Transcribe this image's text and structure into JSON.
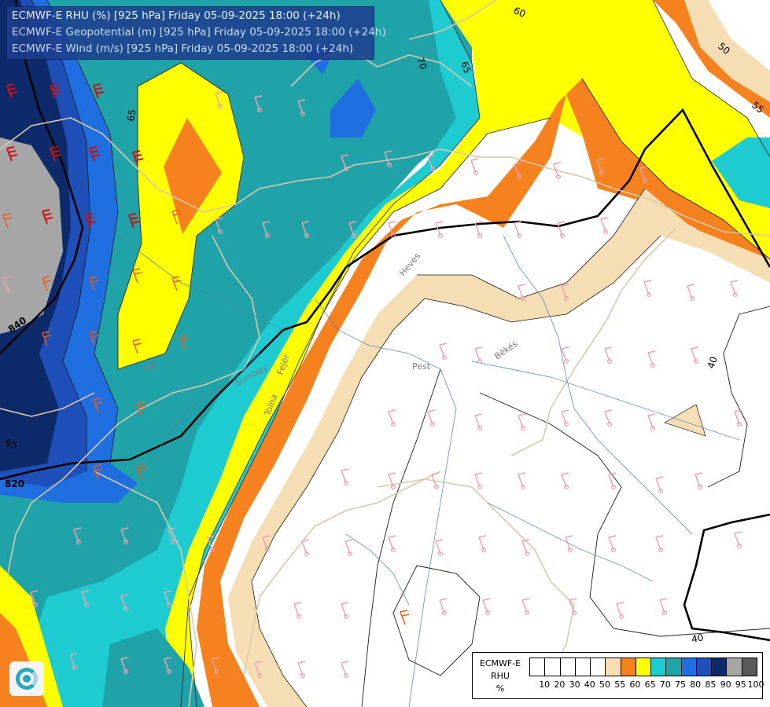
{
  "header": {
    "line1": "ECMWF-E RHU (%) [925 hPa] Friday 05-09-2025 18:00 (+24h)",
    "line2": "ECMWF-E Geopotential (m) [925 hPa] Friday 05-09-2025 18:00 (+24h)",
    "line3": "ECMWF-E Wind (m/s) [925 hPa] Friday 05-09-2025 18:00 (+24h)"
  },
  "legend": {
    "title1": "ECMWF-E",
    "title2": "RHU",
    "title3": "%",
    "swatch_colors": [
      "#ffffff",
      "#ffffff",
      "#ffffff",
      "#ffffff",
      "#ffffff",
      "#f5deb3",
      "#f5821f",
      "#ffff00",
      "#1ecbd0",
      "#1fa3a8",
      "#1f6fe0",
      "#1f4fb8",
      "#0d2a6b",
      "#a6a6a6",
      "#5a5a5a"
    ],
    "ticks": [
      "10",
      "20",
      "30",
      "40",
      "50",
      "55",
      "60",
      "65",
      "70",
      "75",
      "80",
      "85",
      "90",
      "95",
      "100"
    ]
  },
  "contour_labels": {
    "c60": "60",
    "c65a": "65",
    "c65b": "65",
    "c70": "70",
    "c50": "50",
    "c55": "55",
    "c40a": "40",
    "c40b": "40",
    "c65c": "65",
    "c840": "840",
    "c820": "820"
  },
  "places": {
    "p1": "Pest",
    "p2": "Békés",
    "p3": "Heves",
    "p4": "Fejér",
    "p5": "Tolna",
    "p6": "Somogy",
    "p7": "Vas"
  },
  "colors": {
    "rh_white": "#ffffff",
    "rh_55": "#f5deb3",
    "rh_60": "#f5821f",
    "rh_65": "#ffff00",
    "rh_70": "#1ecbd0",
    "rh_75": "#1fa3a8",
    "rh_80": "#1f6fe0",
    "rh_85": "#1f4fb8",
    "rh_90": "#0d2a6b",
    "rh_95": "#a6a6a6",
    "border": "#d8c9a8",
    "river": "#4a7fb0",
    "barb_strong": "#d01010",
    "barb_orange": "#f05a10",
    "barb_weak": "#f0a0b0"
  }
}
